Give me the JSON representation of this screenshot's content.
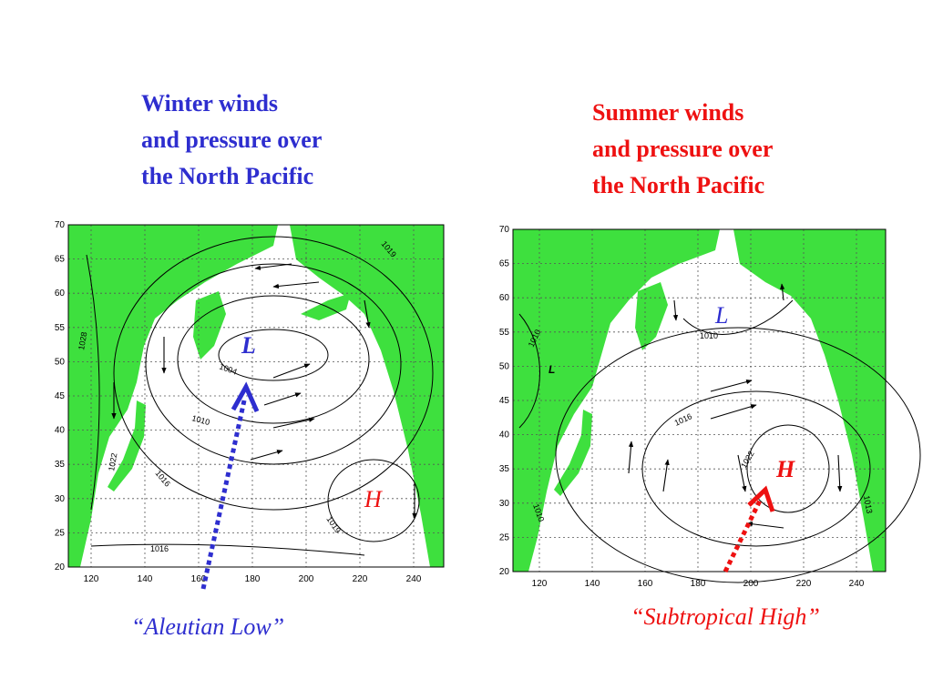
{
  "panels": [
    {
      "title": [
        "Winter winds",
        "and pressure over",
        "the North Pacific"
      ],
      "yticks": [
        "70",
        "65",
        "60",
        "55",
        "50",
        "45",
        "40",
        "35",
        "30",
        "25",
        "20"
      ],
      "xticks": [
        "120",
        "140",
        "160",
        "180",
        "200",
        "220",
        "240"
      ],
      "pressure_labels": [
        "L",
        "H"
      ],
      "isobars": [
        "1019",
        "1028",
        "1004",
        "1010",
        "1022",
        "1016",
        "1019",
        "1016"
      ],
      "caption": "“Aleutian Low”"
    },
    {
      "title": [
        "Summer winds",
        "and pressure over",
        "the North Pacific"
      ],
      "yticks": [
        "70",
        "65",
        "60",
        "55",
        "50",
        "45",
        "40",
        "35",
        "30",
        "25",
        "20"
      ],
      "xticks": [
        "120",
        "140",
        "160",
        "180",
        "200",
        "220",
        "240"
      ],
      "pressure_labels": [
        "L",
        "L",
        "H"
      ],
      "isobars": [
        "1010",
        "1010",
        "1016",
        "1022",
        "1010",
        "1013"
      ],
      "caption": "“Subtropical High”"
    }
  ]
}
